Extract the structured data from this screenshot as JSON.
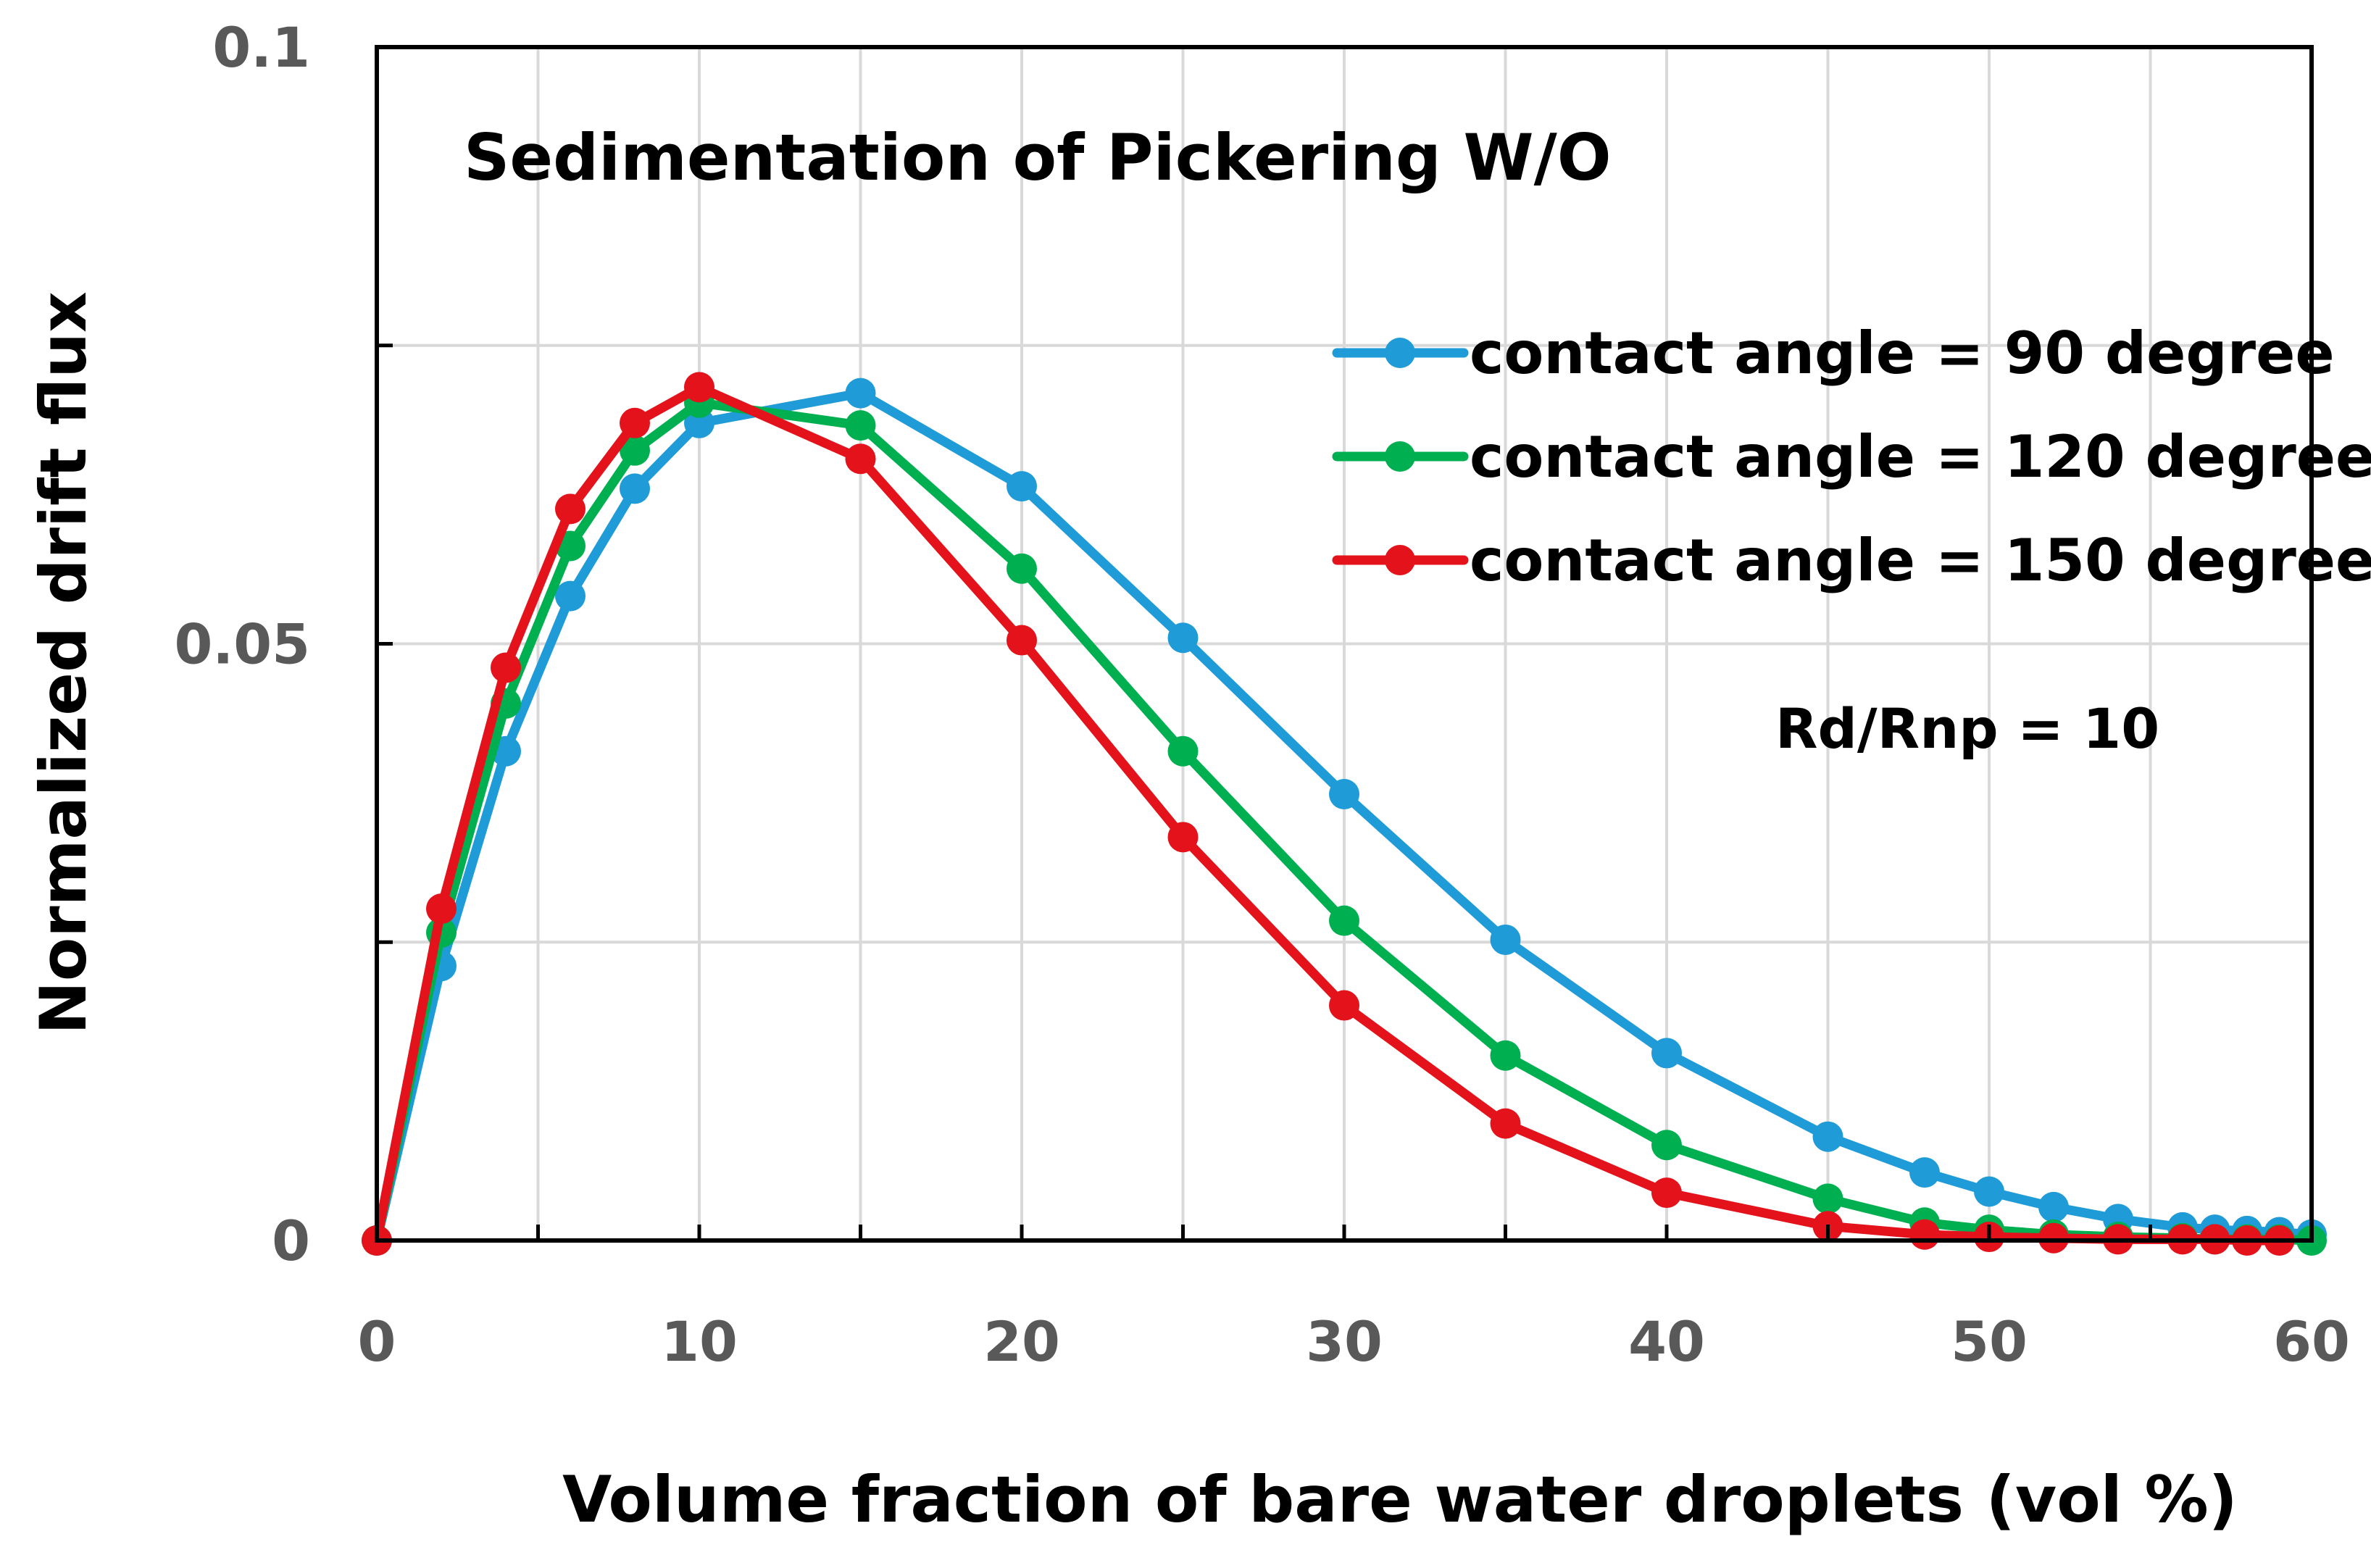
{
  "chart_data": {
    "type": "line",
    "title": "Sedimentation of Pickering W/O",
    "xlabel": "Volume fraction of bare water droplets (vol %)",
    "ylabel": "Normalized drift flux",
    "xlim": [
      0,
      60
    ],
    "ylim": [
      0,
      0.1
    ],
    "xticks": [
      0,
      10,
      20,
      30,
      40,
      50,
      60
    ],
    "xtick_labels": [
      "0",
      "10",
      "20",
      "30",
      "40",
      "50",
      "60"
    ],
    "yticks": [
      0,
      0.05,
      0.1
    ],
    "ytick_labels": [
      "0",
      "0.05",
      "0.1"
    ],
    "y_minor_gridlines": [
      0.025,
      0.075
    ],
    "grid": true,
    "legend_position": "top-right",
    "annotation": "Rd/Rnp = 10",
    "series": [
      {
        "name": "contact angle = 90 degree",
        "color": "#1F9BD8",
        "x": [
          0,
          2,
          4,
          6,
          8,
          10,
          15,
          20,
          25,
          30,
          35,
          40,
          45,
          48,
          50,
          52,
          54,
          56,
          57,
          58,
          59,
          60
        ],
        "y": [
          0,
          0.023,
          0.041,
          0.054,
          0.063,
          0.0685,
          0.071,
          0.0632,
          0.0505,
          0.0374,
          0.0252,
          0.0157,
          0.0087,
          0.0057,
          0.0041,
          0.0028,
          0.0018,
          0.0011,
          0.0009,
          0.0008,
          0.0007,
          0.0005
        ]
      },
      {
        "name": "contact angle = 120 degree",
        "color": "#00B050",
        "x": [
          0,
          2,
          4,
          6,
          8,
          10,
          15,
          20,
          25,
          30,
          35,
          40,
          45,
          48,
          50,
          52,
          54,
          56,
          57,
          58,
          59,
          60
        ],
        "y": [
          0,
          0.0258,
          0.045,
          0.0582,
          0.0662,
          0.0702,
          0.0683,
          0.0563,
          0.041,
          0.0268,
          0.0155,
          0.008,
          0.0035,
          0.0015,
          0.0009,
          0.0005,
          0.0003,
          0.0002,
          0.0001,
          0.0001,
          0.0001,
          0.0
        ]
      },
      {
        "name": "contact angle = 150 degree",
        "color": "#E3121B",
        "x": [
          0,
          2,
          4,
          6,
          8,
          10,
          15,
          20,
          25,
          30,
          35,
          40,
          45,
          48,
          50,
          52,
          54,
          56,
          57,
          58,
          59
        ],
        "y": [
          0,
          0.0278,
          0.048,
          0.0613,
          0.0685,
          0.0715,
          0.0655,
          0.0503,
          0.0338,
          0.0197,
          0.0098,
          0.004,
          0.0012,
          0.0005,
          0.0003,
          0.0002,
          0.0001,
          0.0001,
          0.0001,
          0.0,
          0.0
        ]
      }
    ]
  }
}
